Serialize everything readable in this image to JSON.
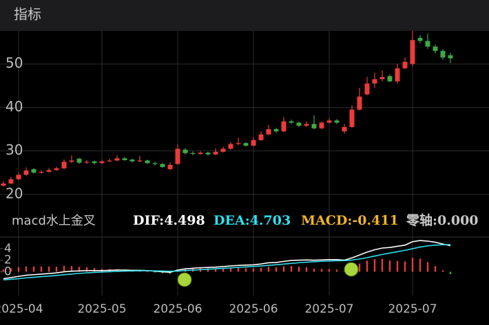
{
  "header": {
    "title": "指标"
  },
  "chart_data": [
    {
      "type": "candlestick",
      "categories": [
        null,
        null,
        "2025-04",
        null,
        null,
        null,
        null,
        null,
        null,
        null,
        null,
        null,
        null,
        "2025-05",
        null,
        null,
        null,
        null,
        null,
        null,
        null,
        null,
        null,
        "2025-06",
        null,
        null,
        null,
        null,
        null,
        null,
        null,
        null,
        null,
        "2025-06",
        null,
        null,
        null,
        null,
        null,
        null,
        null,
        null,
        null,
        "2025-07",
        null,
        null,
        null,
        null,
        null,
        null,
        null,
        null,
        null,
        null,
        "2025-07",
        null,
        null,
        null,
        null,
        null
      ],
      "ohlc": [
        [
          22,
          23,
          21.8,
          22.5
        ],
        [
          22.5,
          24,
          22.3,
          23.5
        ],
        [
          23.5,
          25,
          23.3,
          24.5
        ],
        [
          24.5,
          26.2,
          24.3,
          25.5
        ],
        [
          25.8,
          26,
          24.8,
          25
        ],
        [
          25,
          25.6,
          24.8,
          25.2
        ],
        [
          25.2,
          26,
          25,
          25.6
        ],
        [
          25.6,
          26.4,
          25.4,
          26
        ],
        [
          26,
          28,
          25.8,
          27.5
        ],
        [
          27.5,
          29,
          27.2,
          27.8
        ],
        [
          28.2,
          28.4,
          27,
          27.3
        ],
        [
          27.3,
          27.9,
          27,
          27.5
        ],
        [
          27.6,
          27.8,
          26.9,
          27.2
        ],
        [
          27.2,
          28,
          27,
          27.6
        ],
        [
          27.6,
          28.2,
          27.4,
          27.8
        ],
        [
          27.8,
          29,
          27.6,
          28.3
        ],
        [
          28.3,
          28.6,
          27.7,
          27.9
        ],
        [
          28,
          28.2,
          27.4,
          27.6
        ],
        [
          27.6,
          28.9,
          27.4,
          27.8
        ],
        [
          27.8,
          28,
          27,
          27.2
        ],
        [
          27.2,
          27.5,
          26.6,
          27
        ],
        [
          27,
          27.2,
          26.1,
          26.3
        ],
        [
          25.8,
          27.4,
          25.6,
          26.8
        ],
        [
          27,
          31.5,
          26.8,
          30.5
        ],
        [
          30.3,
          30.6,
          29.2,
          29.5
        ],
        [
          29.5,
          29.9,
          29,
          29.3
        ],
        [
          29.3,
          29.9,
          29.1,
          29.6
        ],
        [
          29.6,
          29.8,
          28.9,
          29.2
        ],
        [
          29.2,
          30.6,
          29,
          29.8
        ],
        [
          29.8,
          31,
          29.6,
          30.5
        ],
        [
          30.5,
          32,
          30.3,
          31.6
        ],
        [
          31.6,
          33,
          31.3,
          31.8
        ],
        [
          31.8,
          32,
          31,
          31.2
        ],
        [
          31.2,
          33.2,
          31,
          32.5
        ],
        [
          32.5,
          34.5,
          32.3,
          33.8
        ],
        [
          33.8,
          36,
          33.6,
          35
        ],
        [
          35,
          35.3,
          34.2,
          34.5
        ],
        [
          34.5,
          37.8,
          34.3,
          36.8
        ],
        [
          36.8,
          37.2,
          36.2,
          36.5
        ],
        [
          36.5,
          36.7,
          35.5,
          35.8
        ],
        [
          35.8,
          36.8,
          35.5,
          36.2
        ],
        [
          36.2,
          38.2,
          35,
          35.2
        ],
        [
          35.2,
          36.8,
          35,
          36.5
        ],
        [
          36.5,
          37.5,
          36.3,
          37
        ],
        [
          37,
          37.3,
          36.2,
          36.5
        ],
        [
          34.5,
          36.2,
          34,
          35.5
        ],
        [
          35.5,
          40.5,
          35.3,
          39.5
        ],
        [
          39.5,
          44.5,
          39.3,
          42.5
        ],
        [
          43,
          47,
          42.8,
          45.5
        ],
        [
          45.5,
          48,
          44.5,
          46.5
        ],
        [
          46.5,
          48.5,
          46,
          47
        ],
        [
          47.2,
          47.6,
          45.8,
          46
        ],
        [
          46,
          50,
          45.5,
          49
        ],
        [
          49,
          51.5,
          48.8,
          50.5
        ],
        [
          50,
          57.6,
          49.5,
          55.5
        ],
        [
          56,
          56.6,
          54.8,
          55.3
        ],
        [
          55.3,
          57,
          53.5,
          54
        ],
        [
          54,
          54.5,
          52.4,
          53
        ],
        [
          53,
          53.4,
          51,
          51.5
        ],
        [
          52,
          52.6,
          50.2,
          51.3
        ]
      ],
      "up_color": "#ea3b3b",
      "down_color": "#3cab45",
      "ylim": [
        17.3,
        57.6
      ],
      "yticks": [
        20,
        30,
        40,
        50
      ],
      "grid": true
    },
    {
      "type": "macd",
      "title": "macd水上金叉",
      "indicator_labels": [
        {
          "label": "DIF:4.498",
          "color": "#ffffff"
        },
        {
          "label": "DEA:4.703",
          "color": "#2ee0ee"
        },
        {
          "label": "MACD:-0.411",
          "color": "#f0b429"
        },
        {
          "label": "零轴:0.000",
          "color": "#c8c8c8"
        }
      ],
      "series": [
        {
          "color": "#ffffff",
          "values": [
            -1.2,
            -1.0,
            -0.8,
            -0.6,
            -0.5,
            -0.4,
            -0.3,
            -0.2,
            0,
            0.1,
            0.15,
            0.2,
            0.2,
            0.2,
            0.25,
            0.3,
            0.3,
            0.25,
            0.25,
            0.2,
            0.1,
            0,
            -0.1,
            0.3,
            0.5,
            0.6,
            0.7,
            0.75,
            0.8,
            0.9,
            1.0,
            1.1,
            1.15,
            1.2,
            1.35,
            1.55,
            1.6,
            1.8,
            1.95,
            2.0,
            2.05,
            2.0,
            2.05,
            2.1,
            2.1,
            2.0,
            2.4,
            2.9,
            3.4,
            3.8,
            4.1,
            4.2,
            4.4,
            4.6,
            5.2,
            5.4,
            5.3,
            5.1,
            4.8,
            4.498
          ]
        },
        {
          "color": "#2ee0ee",
          "values": [
            -1.4,
            -1.3,
            -1.2,
            -1.05,
            -0.95,
            -0.85,
            -0.75,
            -0.64,
            -0.51,
            -0.39,
            -0.28,
            -0.19,
            -0.11,
            -0.05,
            0.01,
            0.07,
            0.12,
            0.15,
            0.17,
            0.18,
            0.16,
            0.13,
            0.08,
            0.12,
            0.2,
            0.28,
            0.36,
            0.44,
            0.51,
            0.59,
            0.67,
            0.76,
            0.84,
            0.91,
            1.0,
            1.11,
            1.21,
            1.33,
            1.45,
            1.56,
            1.66,
            1.73,
            1.8,
            1.86,
            1.91,
            1.93,
            2.02,
            2.2,
            2.44,
            2.71,
            2.99,
            3.23,
            3.47,
            3.7,
            3.99,
            4.27,
            4.47,
            4.6,
            4.67,
            4.703
          ]
        }
      ],
      "histogram": {
        "up_color": "#ea3b3b",
        "down_color": "#3cab45",
        "values": [
          0.4,
          0.6,
          0.8,
          0.9,
          0.9,
          0.9,
          0.9,
          0.88,
          1.02,
          0.98,
          0.86,
          0.78,
          0.62,
          0.5,
          0.48,
          0.46,
          0.36,
          0.2,
          0.16,
          0.04,
          -0.12,
          -0.26,
          -0.36,
          0.36,
          0.6,
          0.64,
          0.68,
          0.62,
          0.58,
          0.62,
          0.66,
          0.68,
          0.62,
          0.58,
          0.7,
          0.88,
          0.78,
          0.94,
          1.0,
          0.88,
          0.78,
          0.54,
          0.5,
          0.48,
          0.38,
          0.14,
          0.76,
          1.4,
          1.92,
          2.18,
          2.22,
          1.94,
          1.86,
          1.8,
          2.42,
          2.26,
          1.66,
          1.0,
          0.26,
          -0.411
        ]
      },
      "ylim": [
        -3.5,
        6
      ],
      "yticks": [
        4,
        2,
        0
      ]
    }
  ]
}
